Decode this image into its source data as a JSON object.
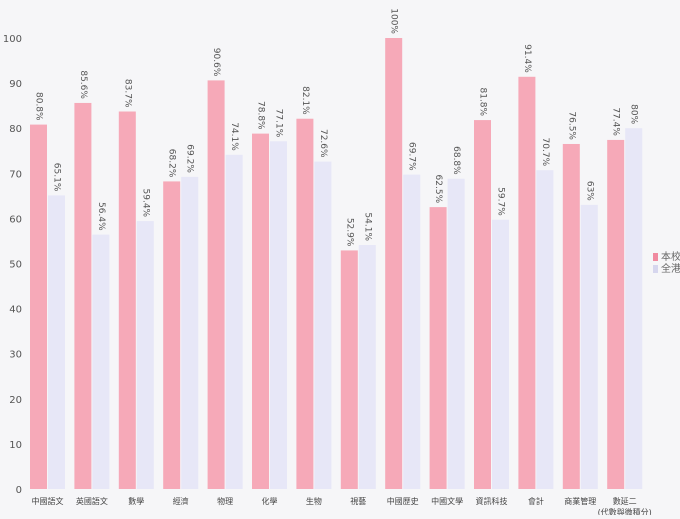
{
  "chart_data": {
    "type": "bar",
    "categories": [
      "中國語文",
      "英國語文",
      "數學",
      "經濟",
      "物理",
      "化學",
      "生物",
      "視藝",
      "中國歷史",
      "中國文學",
      "資訊科技",
      "會計",
      "商業管理",
      "數延二"
    ],
    "extra_label": "(代數與微積分)",
    "series": [
      {
        "name": "本校",
        "values": [
          80.8,
          85.6,
          83.7,
          68.2,
          90.6,
          78.8,
          82.1,
          52.9,
          100,
          62.5,
          81.8,
          91.4,
          76.5,
          77.4
        ],
        "labels": [
          "80.8%",
          "85.6%",
          "83.7%",
          "68.2%",
          "90.6%",
          "78.8%",
          "82.1%",
          "52.9%",
          "100%",
          "62.5%",
          "81.8%",
          "91.4%",
          "76.5%",
          "77.4%"
        ]
      },
      {
        "name": "全港",
        "values": [
          65.1,
          56.4,
          59.4,
          69.2,
          74.1,
          77.1,
          72.6,
          54.1,
          69.7,
          68.8,
          59.7,
          70.7,
          63,
          80
        ],
        "labels": [
          "65.1%",
          "56.4%",
          "59.4%",
          "69.2%",
          "74.1%",
          "77.1%",
          "72.6%",
          "54.1%",
          "69.7%",
          "68.8%",
          "59.7%",
          "70.7%",
          "63%",
          "80%"
        ]
      }
    ],
    "ylim": [
      0,
      100
    ],
    "yticks": [
      "0",
      "10",
      "20",
      "30",
      "40",
      "50",
      "60",
      "70",
      "80",
      "90",
      "100"
    ],
    "grid": false,
    "legend_position": "right",
    "colors": {
      "series1": "#f6a9b8",
      "series2": "#e7e7f7"
    }
  }
}
